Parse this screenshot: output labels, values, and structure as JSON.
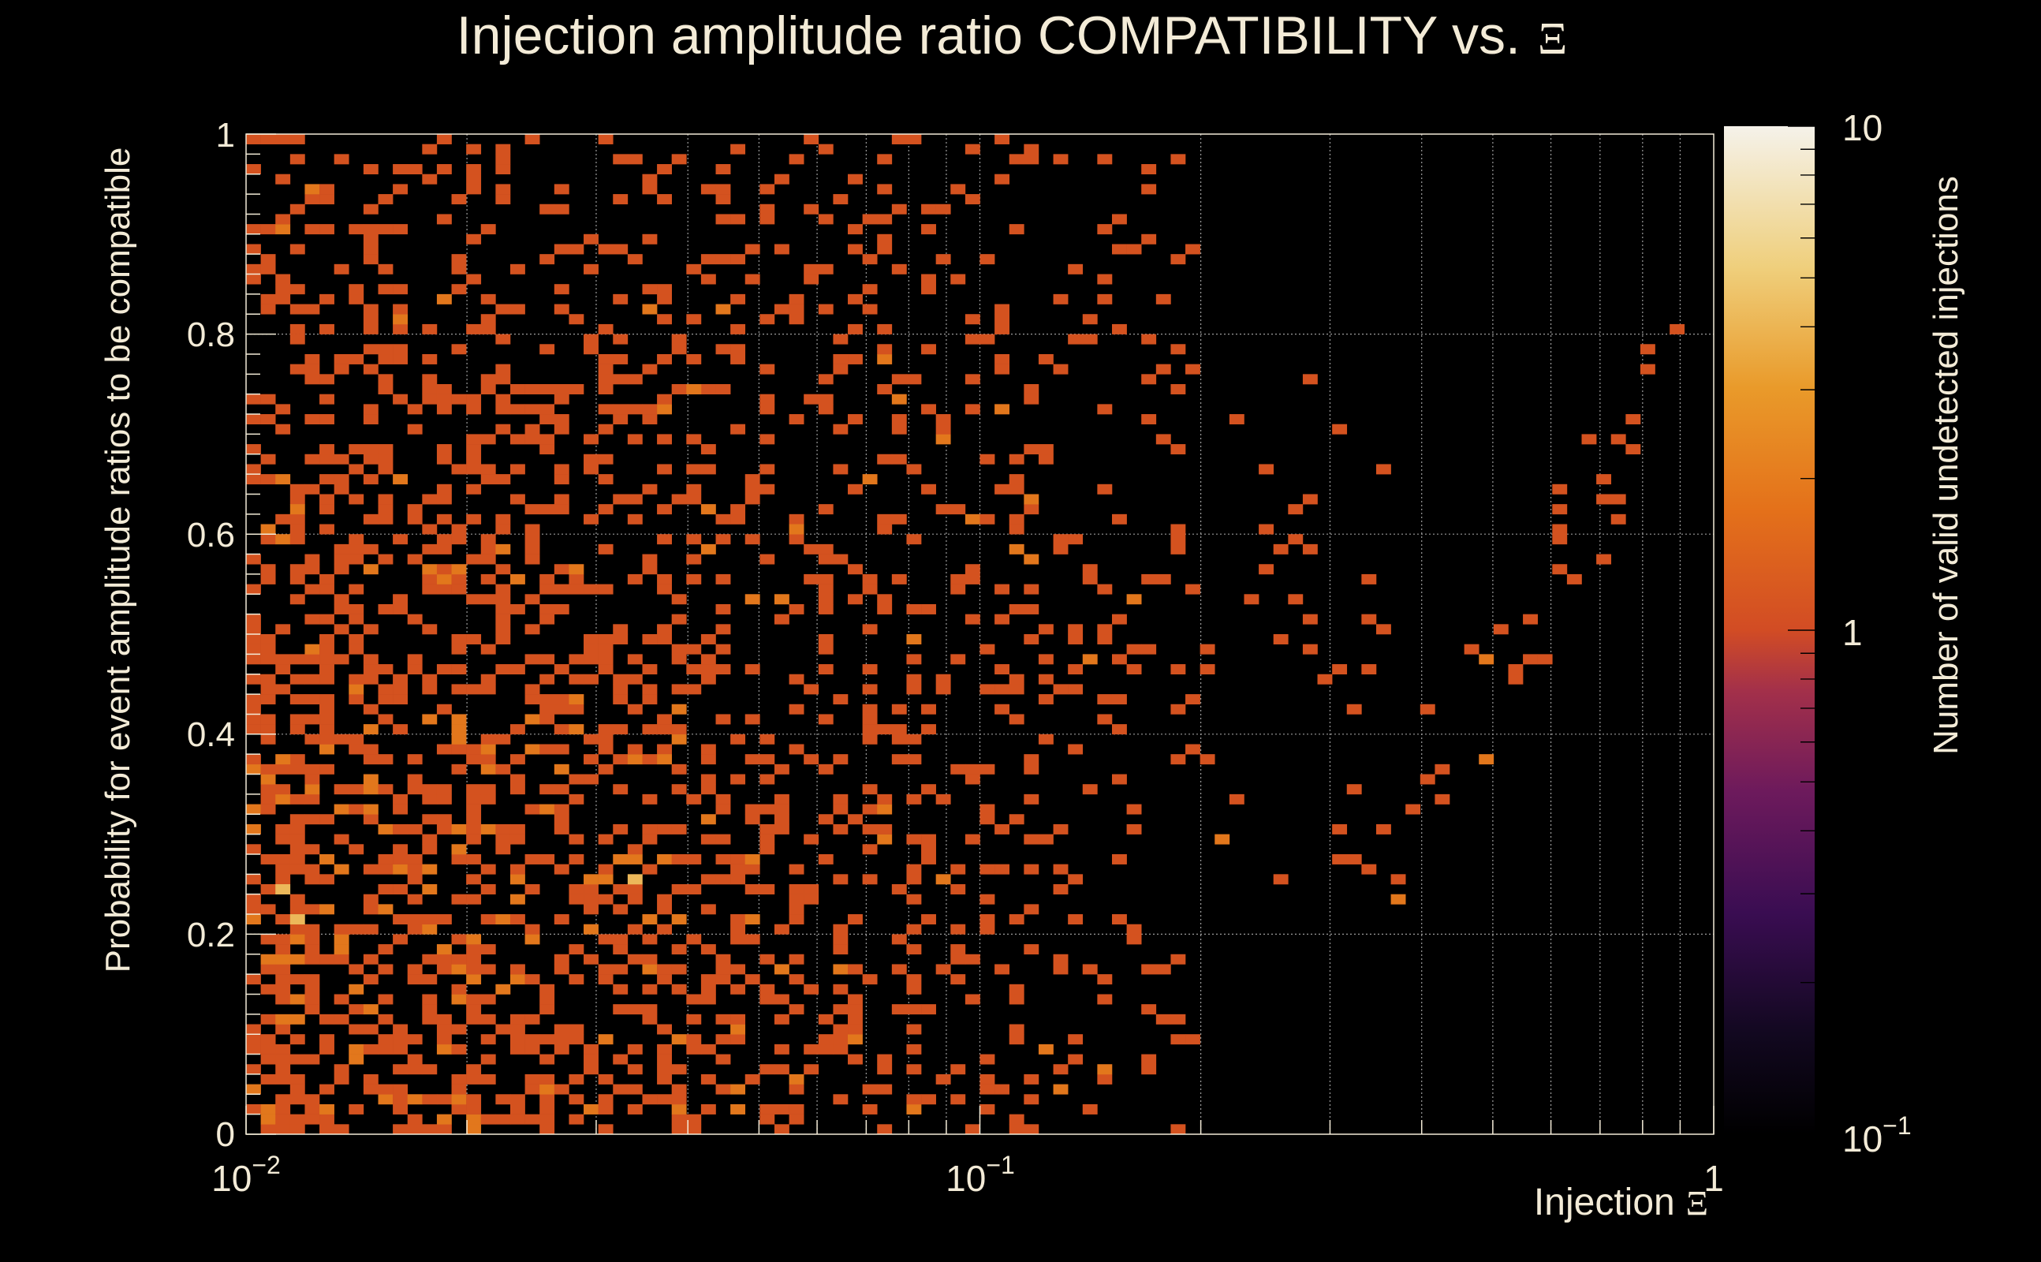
{
  "chart_data": {
    "type": "heatmap",
    "title": "Injection amplitude ratio COMPATIBILITY vs.",
    "title_symbol": "Ξ",
    "xlabel": "Injection",
    "xlabel_symbol": "Ξ",
    "ylabel": "Probability for event amplitude ratios to be compatible",
    "colorbar_label": "Number of valid undetected injections",
    "x_scale": "log",
    "xlim": [
      0.01,
      1
    ],
    "ylim": [
      0,
      1
    ],
    "color_scale": "log",
    "zlim": [
      0.1,
      10
    ],
    "x_ticks": [
      {
        "base": "10",
        "exp": "−2"
      },
      {
        "base": "10",
        "exp": "−1"
      },
      {
        "base": "1",
        "exp": ""
      }
    ],
    "y_ticks": [
      "0",
      "0.2",
      "0.4",
      "0.6",
      "0.8",
      "1"
    ],
    "z_ticks": [
      {
        "base": "10",
        "exp": "−1"
      },
      {
        "base": "1",
        "exp": ""
      },
      {
        "base": "10",
        "exp": ""
      }
    ],
    "grid": true,
    "palette": [
      "#000000",
      "#1c0b33",
      "#4a0d5c",
      "#7a1e5a",
      "#a8344a",
      "#d24d26",
      "#e2711c",
      "#e9a030",
      "#efd278",
      "#f3f0e6"
    ],
    "bins": {
      "nx": 100,
      "ny": 100,
      "x_edges": "log-uniform from 0.01 to 1",
      "y_edges": "uniform from 0 to 1",
      "count_low_regions": [
        {
          "x": [
            0.01,
            0.2
          ],
          "y": [
            0.0,
            1.0
          ],
          "occupancy": "high",
          "typical_count": 1
        },
        {
          "x": [
            0.2,
            0.35
          ],
          "y": [
            0.25,
            0.75
          ],
          "occupancy": "low",
          "typical_count": 1
        },
        {
          "x": [
            0.35,
            0.85
          ],
          "y": [
            0.3,
            0.75
          ],
          "occupancy": "sparse diagonal",
          "typical_count": 1
        }
      ],
      "hot_cells": [
        {
          "x": 0.012,
          "y": 0.21,
          "count": 3
        },
        {
          "x": 0.011,
          "y": 0.24,
          "count": 3
        },
        {
          "x": 0.013,
          "y": 0.27,
          "count": 2
        },
        {
          "x": 0.01,
          "y": 0.3,
          "count": 2
        },
        {
          "x": 0.034,
          "y": 0.25,
          "count": 3
        },
        {
          "x": 0.011,
          "y": 0.37,
          "count": 2
        },
        {
          "x": 0.038,
          "y": 0.37,
          "count": 2
        },
        {
          "x": 0.015,
          "y": 0.4,
          "count": 2
        },
        {
          "x": 0.14,
          "y": 0.47,
          "count": 2
        },
        {
          "x": 0.048,
          "y": 0.53,
          "count": 2
        },
        {
          "x": 0.028,
          "y": 0.56,
          "count": 2
        },
        {
          "x": 0.015,
          "y": 0.57,
          "count": 2
        },
        {
          "x": 0.055,
          "y": 0.6,
          "count": 2
        },
        {
          "x": 0.012,
          "y": 0.62,
          "count": 2
        },
        {
          "x": 0.041,
          "y": 0.74,
          "count": 2
        },
        {
          "x": 0.019,
          "y": 0.83,
          "count": 2
        },
        {
          "x": 0.12,
          "y": 0.63,
          "count": 2
        }
      ],
      "seed": 20240917
    }
  }
}
